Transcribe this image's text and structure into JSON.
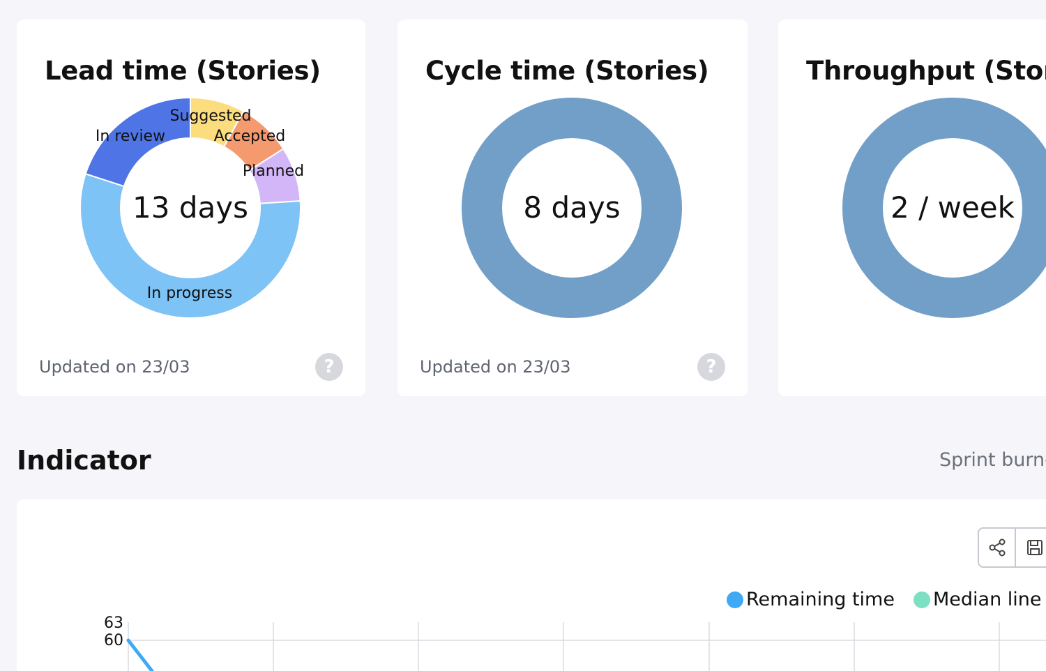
{
  "cards": [
    {
      "title": "Lead time (Stories)",
      "center_value": "13 days",
      "updated": "Updated on 23/03",
      "help_glyph": "?",
      "slices": [
        {
          "label": "Suggested",
          "value": 8,
          "color": "#fbdd7d"
        },
        {
          "label": "Accepted",
          "value": 8,
          "color": "#f49a6e"
        },
        {
          "label": "Planned",
          "value": 8,
          "color": "#d2b6f7"
        },
        {
          "label": "In progress",
          "value": 56,
          "color": "#7dc3f6"
        },
        {
          "label": "In review",
          "value": 20,
          "color": "#4e74e5"
        }
      ]
    },
    {
      "title": "Cycle time (Stories)",
      "center_value": "8 days",
      "updated": "Updated on 23/03",
      "help_glyph": "?",
      "ring_color": "#729fc7"
    },
    {
      "title": "Throughput (Stories)",
      "center_value": "2 / week",
      "ring_color": "#729fc7"
    }
  ],
  "indicator": {
    "title": "Indicator",
    "link": "Sprint burndown",
    "toolbar": {
      "share_icon": "share-icon",
      "save_icon": "save-icon"
    }
  },
  "chart_data": {
    "type": "line",
    "title": "",
    "legend_placement": "top-right",
    "series": [
      {
        "name": "Remaining time",
        "color": "#3fa9f5",
        "values": [
          60
        ]
      },
      {
        "name": "Median line",
        "color": "#7ee0c2",
        "values": []
      }
    ],
    "y_ticks": [
      "63",
      "60"
    ],
    "grid": true
  }
}
